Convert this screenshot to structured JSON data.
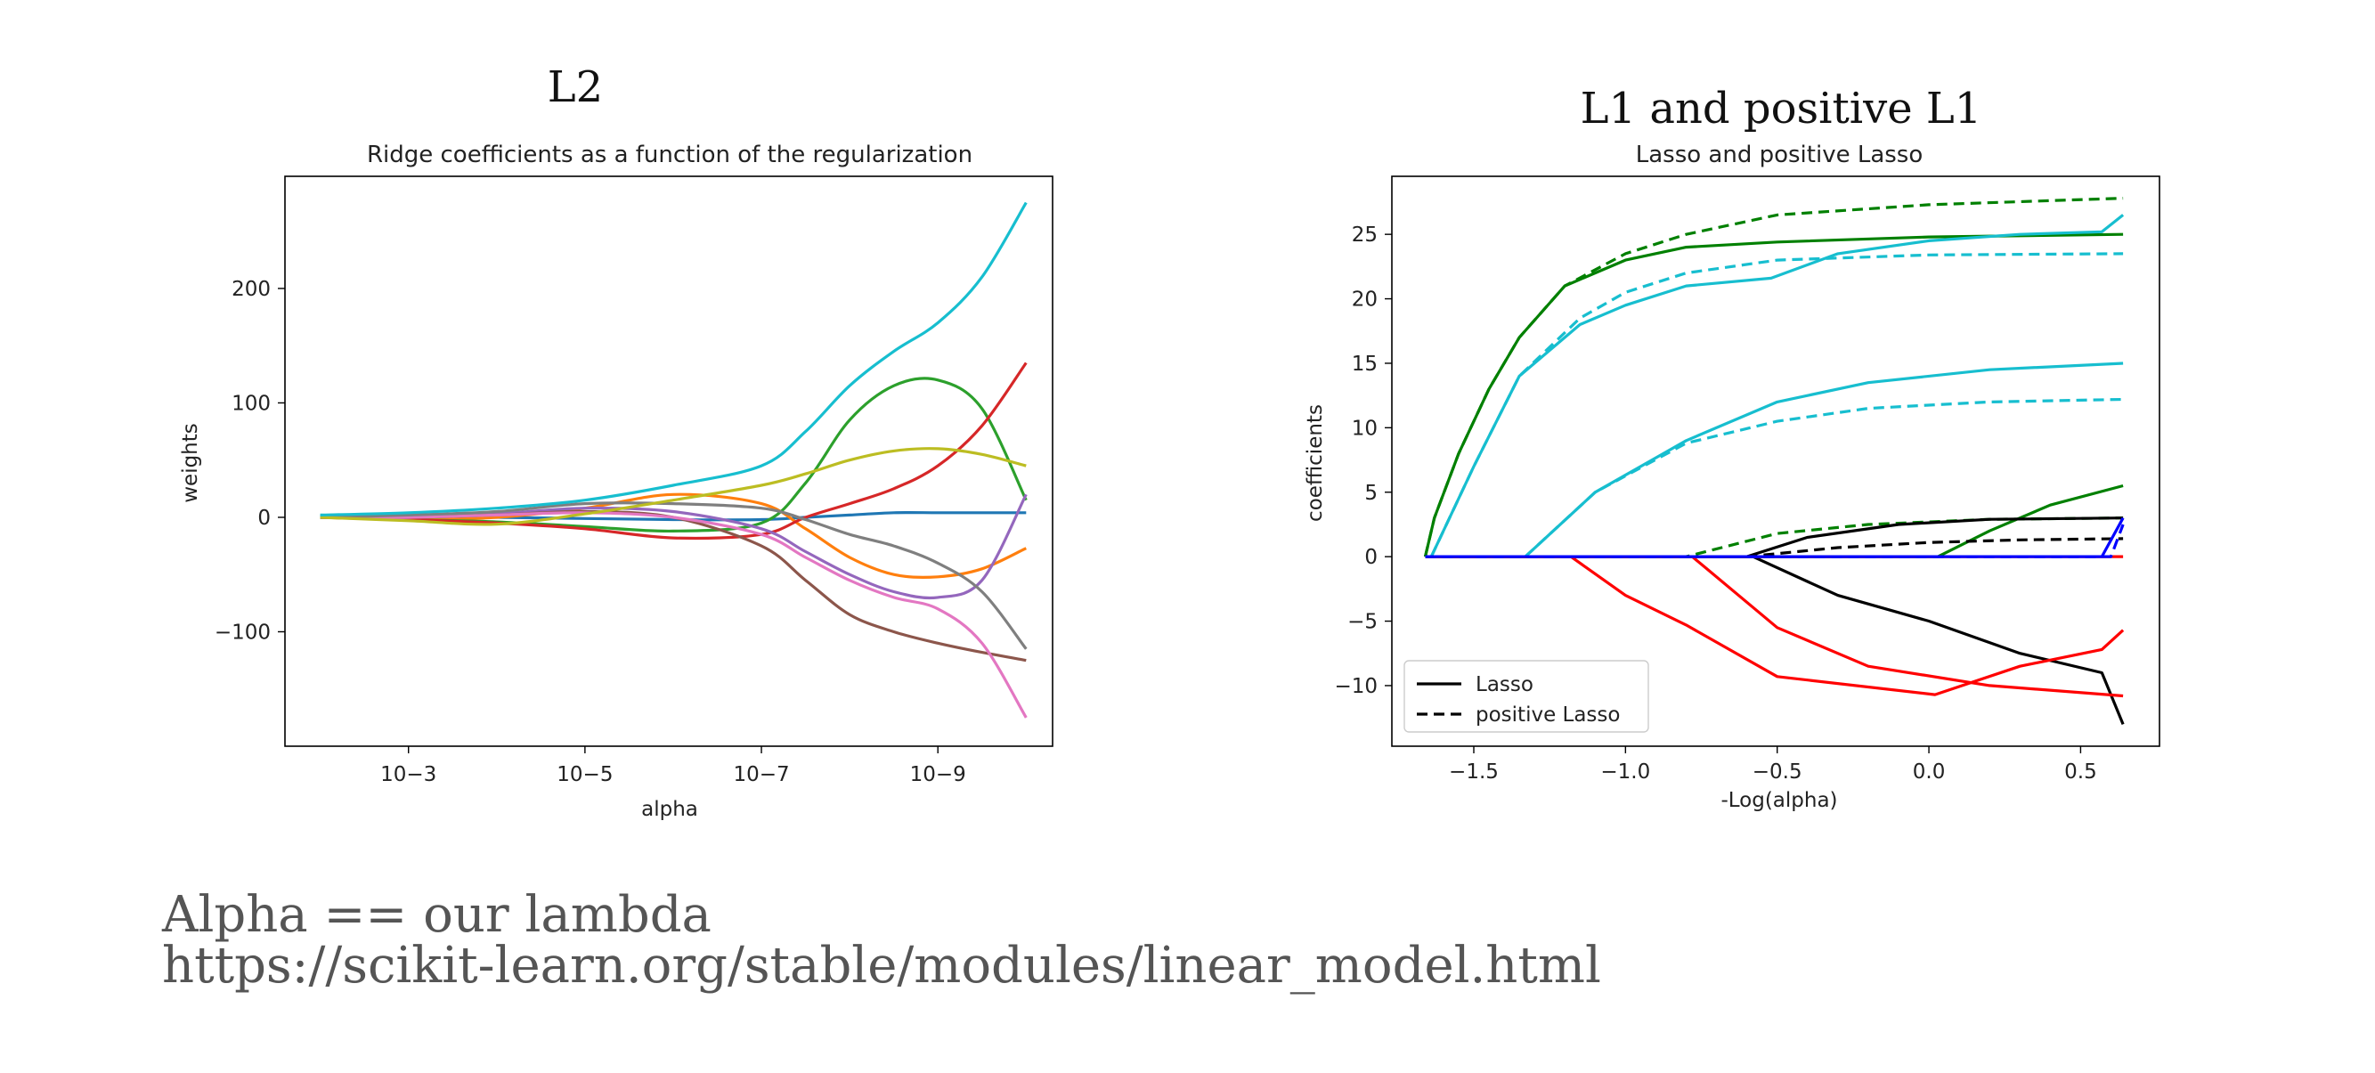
{
  "slide": {
    "l2_heading": "L2",
    "l1_heading": "L1 and positive L1",
    "footer_line1": "Alpha == our lambda",
    "footer_line2": "https://scikit-learn.org/stable/modules/linear_model.html"
  },
  "chart_data": [
    {
      "type": "line",
      "title": "Ridge coefficients as a function of the regularization",
      "xlabel": "alpha",
      "ylabel": "weights",
      "xscale": "log",
      "x_reversed": true,
      "xlim_log10": [
        -1.6,
        -10.3
      ],
      "ylim": [
        -200,
        298
      ],
      "xticks": [
        {
          "exp": -3,
          "label": "10−3"
        },
        {
          "exp": -5,
          "label": "10−5"
        },
        {
          "exp": -7,
          "label": "10−7"
        },
        {
          "exp": -9,
          "label": "10−9"
        }
      ],
      "yticks": [
        {
          "value": 200,
          "label": "200"
        },
        {
          "value": 100,
          "label": "100"
        },
        {
          "value": 0,
          "label": "0"
        },
        {
          "value": -100,
          "label": "−100"
        }
      ],
      "x_log10": [
        -2,
        -3,
        -4,
        -5,
        -6,
        -7,
        -7.5,
        -8,
        -8.5,
        -9,
        -9.5,
        -10
      ],
      "series": [
        {
          "color": "#1f77b4",
          "values": [
            1,
            1,
            0,
            -1,
            -2,
            -2,
            0,
            2,
            4,
            4,
            4,
            4
          ]
        },
        {
          "color": "#ff7f0e",
          "values": [
            0,
            -2,
            0,
            8,
            20,
            12,
            -10,
            -35,
            -50,
            -52,
            -45,
            -27
          ]
        },
        {
          "color": "#2ca02c",
          "values": [
            0,
            -2,
            -4,
            -8,
            -12,
            -5,
            30,
            85,
            115,
            120,
            95,
            15
          ]
        },
        {
          "color": "#d62728",
          "values": [
            0,
            -2,
            -5,
            -10,
            -18,
            -15,
            0,
            12,
            25,
            45,
            80,
            135
          ]
        },
        {
          "color": "#9467bd",
          "values": [
            0,
            0,
            3,
            8,
            5,
            -10,
            -30,
            -50,
            -65,
            -70,
            -55,
            20
          ]
        },
        {
          "color": "#8c564b",
          "values": [
            0,
            0,
            2,
            5,
            0,
            -25,
            -55,
            -85,
            -100,
            -110,
            -118,
            -125
          ]
        },
        {
          "color": "#e377c2",
          "values": [
            0,
            0,
            2,
            4,
            0,
            -15,
            -35,
            -55,
            -70,
            -80,
            -110,
            -175
          ]
        },
        {
          "color": "#7f7f7f",
          "values": [
            0,
            2,
            5,
            12,
            12,
            8,
            -2,
            -15,
            -25,
            -40,
            -65,
            -115
          ]
        },
        {
          "color": "#bcbd22",
          "values": [
            0,
            -3,
            -6,
            3,
            15,
            28,
            38,
            50,
            58,
            60,
            55,
            45
          ]
        },
        {
          "color": "#17becf",
          "values": [
            2,
            4,
            8,
            15,
            28,
            45,
            75,
            115,
            145,
            170,
            210,
            275
          ]
        }
      ]
    },
    {
      "type": "line",
      "title": "Lasso and positive Lasso",
      "xlabel": "-Log(alpha)",
      "ylabel": "coefficients",
      "xlim": [
        -1.77,
        0.76
      ],
      "ylim": [
        -14.7,
        29.5
      ],
      "xticks": [
        {
          "value": -1.5,
          "label": "−1.5"
        },
        {
          "value": -1.0,
          "label": "−1.0"
        },
        {
          "value": -0.5,
          "label": "−0.5"
        },
        {
          "value": 0.0,
          "label": "0.0"
        },
        {
          "value": 0.5,
          "label": "0.5"
        }
      ],
      "yticks": [
        {
          "value": 25,
          "label": "25"
        },
        {
          "value": 20,
          "label": "20"
        },
        {
          "value": 15,
          "label": "15"
        },
        {
          "value": 10,
          "label": "10"
        },
        {
          "value": 5,
          "label": "5"
        },
        {
          "value": 0,
          "label": "0"
        },
        {
          "value": -5,
          "label": "−5"
        },
        {
          "value": -10,
          "label": "−10"
        }
      ],
      "legend": {
        "position": "lower-left",
        "entries": [
          {
            "label": "Lasso",
            "dash": "solid"
          },
          {
            "label": "positive Lasso",
            "dash": "dashed"
          }
        ]
      },
      "series": [
        {
          "color": "#008000",
          "dash": "solid",
          "x": [
            -1.66,
            -1.63,
            -1.55,
            -1.45,
            -1.35,
            -1.2,
            -1.0,
            -0.8,
            -0.5,
            0.0,
            0.64
          ],
          "y": [
            0,
            3,
            8,
            13,
            17,
            21,
            23,
            24,
            24.4,
            24.8,
            25
          ]
        },
        {
          "color": "#008000",
          "dash": "dashed",
          "x": [
            -1.66,
            -1.63,
            -1.55,
            -1.45,
            -1.35,
            -1.2,
            -1.0,
            -0.8,
            -0.5,
            0.0,
            0.64
          ],
          "y": [
            0,
            3,
            8,
            13,
            17,
            21,
            23.5,
            25,
            26.5,
            27.3,
            27.8
          ]
        },
        {
          "color": "#17becf",
          "dash": "solid",
          "x": [
            -1.64,
            -1.5,
            -1.35,
            -1.15,
            -1.0,
            -0.8,
            -0.52,
            -0.3,
            0.0,
            0.3,
            0.57,
            0.64
          ],
          "y": [
            0,
            7,
            14,
            18,
            19.5,
            21,
            21.6,
            23.5,
            24.5,
            25,
            25.2,
            26.5
          ]
        },
        {
          "color": "#17becf",
          "dash": "dashed",
          "x": [
            -1.64,
            -1.5,
            -1.35,
            -1.15,
            -1.0,
            -0.8,
            -0.5,
            0.0,
            0.64
          ],
          "y": [
            0,
            7,
            14,
            18.5,
            20.5,
            22,
            23,
            23.4,
            23.5
          ]
        },
        {
          "color": "#17becf",
          "dash": "solid",
          "x": [
            -1.33,
            -1.1,
            -0.8,
            -0.5,
            -0.2,
            0.2,
            0.64
          ],
          "y": [
            0,
            5,
            9,
            12,
            13.5,
            14.5,
            15
          ]
        },
        {
          "color": "#17becf",
          "dash": "dashed",
          "x": [
            -1.33,
            -1.1,
            -0.8,
            -0.5,
            -0.2,
            0.2,
            0.64
          ],
          "y": [
            0,
            5,
            8.8,
            10.5,
            11.5,
            12,
            12.2
          ]
        },
        {
          "color": "#008000",
          "dash": "solid",
          "x": [
            -1.66,
            0.03,
            0.2,
            0.4,
            0.64
          ],
          "y": [
            0,
            0,
            2,
            4,
            5.5
          ]
        },
        {
          "color": "#008000",
          "dash": "dashed",
          "x": [
            -1.66,
            -0.8,
            -0.5,
            -0.2,
            0.2,
            0.64
          ],
          "y": [
            0,
            0,
            1.8,
            2.5,
            2.9,
            3
          ]
        },
        {
          "color": "#000000",
          "dash": "solid",
          "x": [
            -1.66,
            -0.6,
            -0.4,
            -0.1,
            0.2,
            0.64
          ],
          "y": [
            0,
            0,
            1.5,
            2.5,
            2.9,
            3
          ]
        },
        {
          "color": "#000000",
          "dash": "dashed",
          "x": [
            -1.66,
            -0.6,
            -0.3,
            0.0,
            0.3,
            0.64
          ],
          "y": [
            0,
            0,
            0.7,
            1.1,
            1.3,
            1.4
          ]
        },
        {
          "color": "#000000",
          "dash": "solid",
          "x": [
            -1.66,
            -0.58,
            -0.3,
            0.0,
            0.3,
            0.57,
            0.64
          ],
          "y": [
            0,
            0,
            -3,
            -5,
            -7.5,
            -9,
            -13
          ]
        },
        {
          "color": "#ff0000",
          "dash": "solid",
          "x": [
            -1.66,
            -1.18,
            -1.0,
            -0.8,
            -0.5,
            0.02,
            0.3,
            0.57,
            0.64
          ],
          "y": [
            0,
            0,
            -3,
            -5.3,
            -9.3,
            -10.7,
            -8.5,
            -7.2,
            -5.7
          ]
        },
        {
          "color": "#ff0000",
          "dash": "solid",
          "x": [
            -1.66,
            -0.78,
            -0.5,
            -0.2,
            0.2,
            0.64
          ],
          "y": [
            0,
            0,
            -5.5,
            -8.5,
            -10,
            -10.8
          ]
        },
        {
          "color": "#ff0000",
          "dash": "solid",
          "x": [
            -1.66,
            0.64
          ],
          "y": [
            0,
            0
          ]
        },
        {
          "color": "#0000ff",
          "dash": "solid",
          "x": [
            -1.66,
            0.57,
            0.64
          ],
          "y": [
            0,
            0,
            3
          ]
        },
        {
          "color": "#0000ff",
          "dash": "dashed",
          "x": [
            -1.66,
            0.6,
            0.64
          ],
          "y": [
            0,
            0,
            2.5
          ]
        }
      ]
    }
  ]
}
